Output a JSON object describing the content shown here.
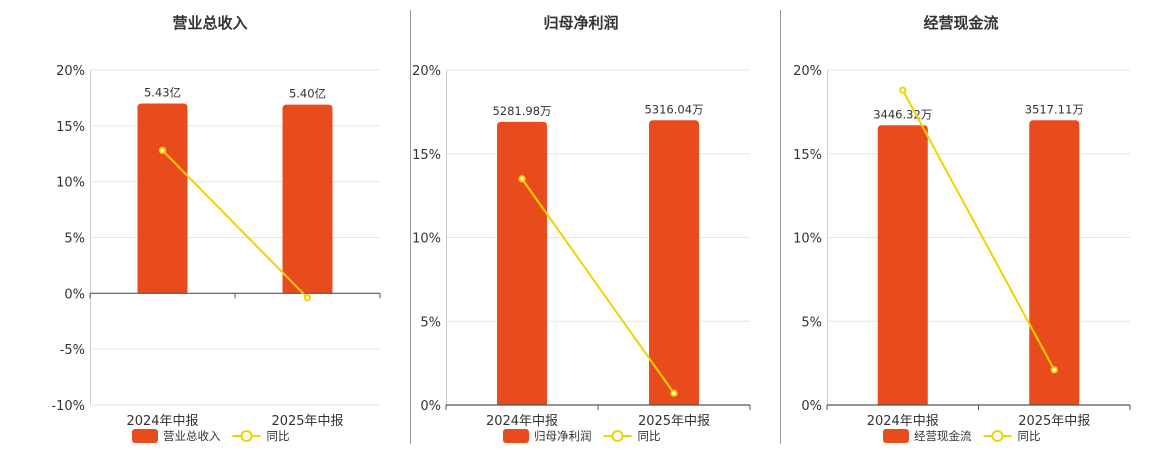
{
  "colors": {
    "bar": "#E84C1C",
    "line": "#F2D200",
    "grid": "#e6e6e6",
    "axis": "#555555",
    "divider": "#9a9a9a",
    "text": "#333333"
  },
  "chart_data": [
    {
      "type": "bar",
      "title": "营业总收入",
      "categories": [
        "2024年中报",
        "2025年中报"
      ],
      "series": [
        {
          "name": "营业总收入",
          "type": "bar",
          "values": [
            17.0,
            16.9
          ],
          "labels": [
            "5.43亿",
            "5.40亿"
          ]
        },
        {
          "name": "同比",
          "type": "line",
          "values": [
            12.8,
            -0.4
          ]
        }
      ],
      "ylim": [
        -10,
        20
      ],
      "yticks": [
        "-10%",
        "-5%",
        "0%",
        "5%",
        "10%",
        "15%",
        "20%"
      ],
      "grid": true,
      "legend": "bottom"
    },
    {
      "type": "bar",
      "title": "归母净利润",
      "categories": [
        "2024年中报",
        "2025年中报"
      ],
      "series": [
        {
          "name": "归母净利润",
          "type": "bar",
          "values": [
            16.9,
            17.0
          ],
          "labels": [
            "5281.98万",
            "5316.04万"
          ]
        },
        {
          "name": "同比",
          "type": "line",
          "values": [
            13.5,
            0.7
          ]
        }
      ],
      "ylim": [
        0,
        20
      ],
      "yticks": [
        "0%",
        "5%",
        "10%",
        "15%",
        "20%"
      ],
      "grid": true,
      "legend": "bottom"
    },
    {
      "type": "bar",
      "title": "经营现金流",
      "categories": [
        "2024年中报",
        "2025年中报"
      ],
      "series": [
        {
          "name": "经营现金流",
          "type": "bar",
          "values": [
            16.7,
            17.0
          ],
          "labels": [
            "3446.32万",
            "3517.11万"
          ]
        },
        {
          "name": "同比",
          "type": "line",
          "values": [
            18.8,
            2.1
          ]
        }
      ],
      "ylim": [
        0,
        20
      ],
      "yticks": [
        "0%",
        "5%",
        "10%",
        "15%",
        "20%"
      ],
      "grid": true,
      "legend": "bottom"
    }
  ]
}
